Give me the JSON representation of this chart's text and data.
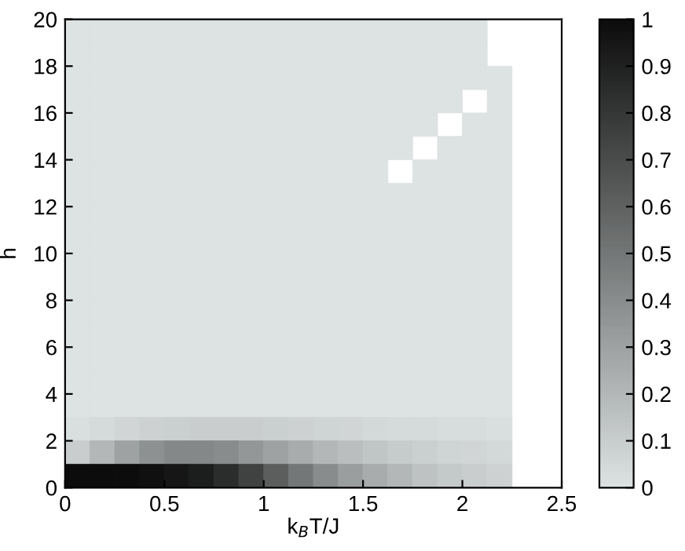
{
  "chart_data": {
    "type": "heatmap",
    "xlabel": "k$_{B}$T/J",
    "ylabel": "h",
    "x": [
      0.0625,
      0.1875,
      0.3125,
      0.4375,
      0.5625,
      0.6875,
      0.8125,
      0.9375,
      1.0625,
      1.1875,
      1.3125,
      1.4375,
      1.5625,
      1.6875,
      1.8125,
      1.9375,
      2.0625,
      2.1875,
      2.3125,
      2.4375
    ],
    "y": [
      19.5,
      18.5,
      17.5,
      16.5,
      15.5,
      14.5,
      13.5,
      12.5,
      11.5,
      10.5,
      9.5,
      8.5,
      7.5,
      6.5,
      5.5,
      4.5,
      3.5,
      2.5,
      1.5,
      0.5
    ],
    "xlim": [
      0,
      2.5
    ],
    "ylim": [
      0,
      20
    ],
    "xticks": [
      0,
      0.5,
      1,
      1.5,
      2,
      2.5
    ],
    "yticks": [
      0,
      2,
      4,
      6,
      8,
      10,
      12,
      14,
      16,
      18,
      20
    ],
    "clim": [
      0,
      1
    ],
    "cticks": [
      0,
      0.1,
      0.2,
      0.3,
      0.4,
      0.5,
      0.6,
      0.7,
      0.8,
      0.9,
      1
    ],
    "cells": [
      [
        0,
        0,
        0,
        0,
        0,
        0,
        0,
        0,
        0,
        0,
        0,
        0,
        0,
        0,
        0,
        0,
        0,
        null,
        null,
        null
      ],
      [
        0,
        0,
        0,
        0,
        0,
        0,
        0,
        0,
        0,
        0,
        0,
        0,
        0,
        0,
        0,
        0,
        0,
        null,
        null,
        null
      ],
      [
        0,
        0,
        0,
        0,
        0,
        0,
        0,
        0,
        0,
        0,
        0,
        0,
        0,
        0,
        0,
        0,
        0,
        0,
        null,
        null
      ],
      [
        0,
        0,
        0,
        0,
        0,
        0,
        0,
        0,
        0,
        0,
        0,
        0,
        0,
        0,
        0,
        0,
        null,
        0,
        null,
        null
      ],
      [
        0,
        0,
        0,
        0,
        0,
        0,
        0,
        0,
        0,
        0,
        0,
        0,
        0,
        0,
        0,
        null,
        0,
        0,
        null,
        null
      ],
      [
        0,
        0,
        0,
        0,
        0,
        0,
        0,
        0,
        0,
        0,
        0,
        0,
        0,
        0,
        null,
        0,
        0,
        0,
        null,
        null
      ],
      [
        0,
        0,
        0,
        0,
        0,
        0,
        0,
        0,
        0,
        0,
        0,
        0,
        0,
        null,
        0,
        0,
        0,
        0,
        null,
        null
      ],
      [
        0,
        0,
        0,
        0,
        0,
        0,
        0,
        0,
        0,
        0,
        0,
        0,
        0,
        0,
        0,
        0,
        0,
        0,
        null,
        null
      ],
      [
        0,
        0,
        0,
        0,
        0,
        0,
        0,
        0,
        0,
        0,
        0,
        0,
        0,
        0,
        0,
        0,
        0,
        0,
        null,
        null
      ],
      [
        0,
        0,
        0,
        0,
        0,
        0,
        0,
        0,
        0,
        0,
        0,
        0,
        0,
        0,
        0,
        0,
        0,
        0,
        null,
        null
      ],
      [
        0,
        0,
        0,
        0,
        0,
        0,
        0,
        0,
        0,
        0,
        0,
        0,
        0,
        0,
        0,
        0,
        0,
        0,
        null,
        null
      ],
      [
        0,
        0,
        0,
        0,
        0,
        0,
        0,
        0,
        0,
        0,
        0,
        0,
        0,
        0,
        0,
        0,
        0,
        0,
        null,
        null
      ],
      [
        0,
        0,
        0,
        0,
        0,
        0,
        0,
        0,
        0,
        0,
        0,
        0,
        0,
        0,
        0,
        0,
        0,
        0,
        null,
        null
      ],
      [
        0,
        0,
        0,
        0,
        0,
        0,
        0,
        0,
        0,
        0,
        0,
        0,
        0,
        0,
        0,
        0,
        0,
        0,
        null,
        null
      ],
      [
        0,
        0,
        0,
        0,
        0,
        0,
        0,
        0,
        0,
        0,
        0,
        0,
        0,
        0,
        0,
        0,
        0,
        0,
        null,
        null
      ],
      [
        0,
        0,
        0,
        0,
        0,
        0,
        0,
        0,
        0,
        0,
        0,
        0,
        0,
        0,
        0,
        0,
        0,
        0,
        null,
        null
      ],
      [
        0,
        0,
        0,
        0,
        0,
        0,
        0,
        0,
        0,
        0,
        0,
        0,
        0,
        0,
        0,
        0,
        0,
        0,
        null,
        null
      ],
      [
        0.02,
        0.04,
        0.06,
        0.08,
        0.09,
        0.1,
        0.1,
        0.1,
        0.09,
        0.08,
        0.07,
        0.06,
        0.05,
        0.04,
        0.04,
        0.03,
        0.03,
        0.02,
        null,
        null
      ],
      [
        0.1,
        0.2,
        0.3,
        0.38,
        0.42,
        0.42,
        0.4,
        0.35,
        0.3,
        0.25,
        0.2,
        0.17,
        0.14,
        0.11,
        0.09,
        0.07,
        0.06,
        0.05,
        null,
        null
      ],
      [
        1,
        1,
        1,
        0.98,
        0.95,
        0.92,
        0.85,
        0.75,
        0.62,
        0.5,
        0.4,
        0.32,
        0.25,
        0.2,
        0.15,
        0.12,
        0.1,
        0.08,
        null,
        null
      ]
    ]
  }
}
